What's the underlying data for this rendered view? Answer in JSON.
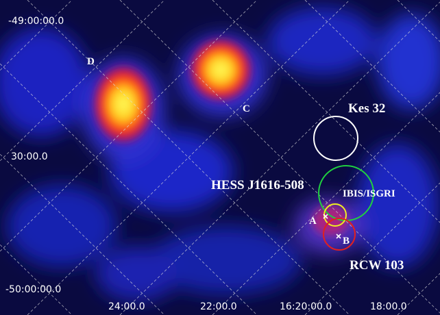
{
  "axis_labels": {
    "dec": [
      "-49:00:00.0",
      "30:00.0",
      "-50:00:00.0"
    ],
    "ra": [
      "24:00.0",
      "22:00.0",
      "16:20:00.0",
      "18:00.0"
    ]
  },
  "sources": {
    "kes": "Kes 32",
    "hess": "HESS J1616-508",
    "ibis": "IBIS/ISGRI",
    "a": "A",
    "b": "B",
    "rcw": "RCW 103",
    "c": "C",
    "d": "D"
  }
}
